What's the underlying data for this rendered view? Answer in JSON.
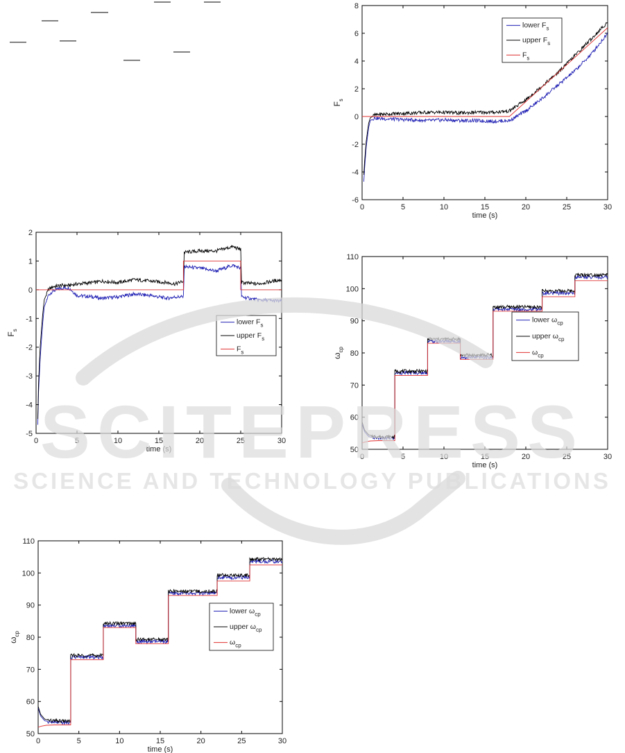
{
  "page": {
    "watermark_text": "SCITEPRESS",
    "watermark_subtitle": "SCIENCE AND TECHNOLOGY PUBLICATIONS"
  },
  "chart_data": [
    {
      "id": "fs-step",
      "type": "line",
      "xlabel": "time (s)",
      "ylabel": "F",
      "ylabel_sub": "s",
      "xlim": [
        0,
        30
      ],
      "ylim": [
        -5,
        2
      ],
      "xticks": [
        0,
        5,
        10,
        15,
        20,
        25,
        30
      ],
      "yticks": [
        -5,
        -4,
        -3,
        -2,
        -1,
        0,
        1,
        2
      ],
      "grid": false,
      "legend_position": "middle-right",
      "series": [
        {
          "name": "lower F",
          "sub": "s",
          "color": "#1f1fb4",
          "x": [
            0.2,
            0.3,
            0.5,
            0.8,
            1.0,
            1.5,
            2.0,
            3.0,
            4.0,
            5.0,
            7.0,
            8.0,
            10.0,
            12.0,
            14.0,
            16.0,
            17.0,
            18.0,
            18.1,
            20.0,
            22.0,
            24.0,
            25.0,
            25.1,
            27.0,
            30.0
          ],
          "y": [
            -4.7,
            -3.6,
            -2.4,
            -1.2,
            -0.6,
            -0.2,
            -0.05,
            0.05,
            0.07,
            -0.2,
            -0.25,
            -0.3,
            -0.25,
            -0.15,
            -0.2,
            -0.3,
            -0.25,
            -0.25,
            0.8,
            0.75,
            0.65,
            0.85,
            0.75,
            -0.25,
            -0.35,
            -0.4
          ]
        },
        {
          "name": "upper F",
          "sub": "s",
          "color": "#000000",
          "x": [
            0.2,
            0.3,
            0.5,
            0.8,
            1.0,
            1.5,
            2.0,
            3.0,
            4.0,
            5.0,
            7.0,
            8.0,
            10.0,
            12.0,
            14.0,
            16.0,
            17.0,
            18.0,
            18.1,
            20.0,
            22.0,
            24.0,
            25.0,
            25.1,
            27.0,
            30.0
          ],
          "y": [
            -4.5,
            -3.3,
            -2.0,
            -0.9,
            -0.35,
            0.0,
            0.1,
            0.15,
            0.15,
            0.2,
            0.25,
            0.3,
            0.25,
            0.35,
            0.3,
            0.25,
            0.2,
            0.3,
            1.3,
            1.35,
            1.35,
            1.5,
            1.4,
            0.25,
            0.2,
            0.35
          ]
        },
        {
          "name": "F",
          "sub": "s",
          "color": "#e03030",
          "x": [
            0.0,
            18.0,
            18.0,
            25.0,
            25.0,
            30.0
          ],
          "y": [
            0,
            0,
            1,
            1,
            0,
            0
          ]
        }
      ]
    },
    {
      "id": "fs-ramp",
      "type": "line",
      "xlabel": "time (s)",
      "ylabel": "F",
      "ylabel_sub": "s",
      "xlim": [
        0,
        30
      ],
      "ylim": [
        -6,
        8
      ],
      "xticks": [
        0,
        5,
        10,
        15,
        20,
        25,
        30
      ],
      "yticks": [
        -6,
        -4,
        -2,
        0,
        2,
        4,
        6,
        8
      ],
      "grid": false,
      "legend_position": "top-right",
      "series": [
        {
          "name": "lower F",
          "sub": "s",
          "color": "#1f1fb4",
          "x": [
            0.2,
            0.3,
            0.5,
            0.8,
            1.0,
            1.5,
            2.0,
            4.0,
            6.0,
            8.0,
            10.0,
            12.0,
            14.0,
            16.0,
            18.0,
            20.0,
            22.0,
            24.0,
            26.0,
            28.0,
            30.0
          ],
          "y": [
            -4.7,
            -3.8,
            -2.2,
            -0.8,
            -0.3,
            -0.1,
            -0.15,
            -0.2,
            -0.25,
            -0.3,
            -0.25,
            -0.3,
            -0.3,
            -0.35,
            -0.3,
            0.4,
            1.3,
            2.3,
            3.3,
            4.5,
            6.0
          ]
        },
        {
          "name": "upper F",
          "sub": "s",
          "color": "#000000",
          "x": [
            0.2,
            0.3,
            0.5,
            0.8,
            1.0,
            1.5,
            2.0,
            4.0,
            6.0,
            8.0,
            10.0,
            12.0,
            14.0,
            16.0,
            18.0,
            20.0,
            22.0,
            24.0,
            26.0,
            28.0,
            30.0
          ],
          "y": [
            -4.2,
            -3.3,
            -1.8,
            -0.5,
            -0.1,
            0.1,
            0.15,
            0.2,
            0.25,
            0.3,
            0.3,
            0.25,
            0.3,
            0.3,
            0.4,
            1.2,
            2.2,
            3.2,
            4.4,
            5.6,
            6.8
          ]
        },
        {
          "name": "F",
          "sub": "s",
          "color": "#e03030",
          "x": [
            0.0,
            18.0,
            30.0
          ],
          "y": [
            0,
            0,
            6.4
          ]
        }
      ]
    },
    {
      "id": "wcp-right",
      "type": "line",
      "xlabel": "time (s)",
      "ylabel": "ω",
      "ylabel_sub": "cp",
      "xlim": [
        0,
        30
      ],
      "ylim": [
        50,
        110
      ],
      "xticks": [
        0,
        5,
        10,
        15,
        20,
        25,
        30
      ],
      "yticks": [
        50,
        60,
        70,
        80,
        90,
        100,
        110
      ],
      "grid": false,
      "legend_position": "middle-right",
      "series": [
        {
          "name": "lower ω",
          "sub": "cp",
          "color": "#1f1fb4",
          "x": [
            0.0,
            0.3,
            0.8,
            1.5,
            2.5,
            4.0,
            4.0,
            8.0,
            8.0,
            12.0,
            12.0,
            16.0,
            16.0,
            22.0,
            22.0,
            26.0,
            26.0,
            30.0
          ],
          "y": [
            58.0,
            55.5,
            54.0,
            53.6,
            53.4,
            53.4,
            73.8,
            73.8,
            83.6,
            83.6,
            78.6,
            78.6,
            93.6,
            93.6,
            98.6,
            98.6,
            103.6,
            103.6
          ]
        },
        {
          "name": "upper ω",
          "sub": "cp",
          "color": "#000000",
          "x": [
            0.0,
            0.3,
            0.8,
            1.5,
            2.5,
            4.0,
            4.0,
            8.0,
            8.0,
            12.0,
            12.0,
            16.0,
            16.0,
            22.0,
            22.0,
            26.0,
            26.0,
            30.0
          ],
          "y": [
            58.5,
            56.0,
            54.5,
            54.0,
            53.9,
            53.9,
            74.3,
            74.3,
            84.3,
            84.3,
            79.3,
            79.3,
            94.3,
            94.3,
            99.3,
            99.3,
            104.3,
            104.3
          ]
        },
        {
          "name": "ω",
          "sub": "cp",
          "color": "#e03030",
          "x": [
            0.0,
            0.4,
            1.0,
            2.0,
            4.0,
            4.0,
            8.0,
            8.0,
            12.0,
            12.0,
            16.0,
            16.0,
            22.0,
            22.0,
            26.0,
            26.0,
            30.0
          ],
          "y": [
            52.0,
            52.3,
            52.6,
            52.7,
            52.7,
            73.0,
            73.0,
            83.0,
            83.0,
            78.0,
            78.0,
            93.0,
            93.0,
            97.5,
            97.5,
            102.5,
            102.5
          ]
        }
      ]
    },
    {
      "id": "wcp-left",
      "type": "line",
      "xlabel": "time (s)",
      "ylabel": "ω",
      "ylabel_sub": "cp",
      "xlim": [
        0,
        30
      ],
      "ylim": [
        50,
        110
      ],
      "xticks": [
        0,
        5,
        10,
        15,
        20,
        25,
        30
      ],
      "yticks": [
        50,
        60,
        70,
        80,
        90,
        100,
        110
      ],
      "grid": false,
      "legend_position": "middle-right",
      "series": [
        {
          "name": "lower ω",
          "sub": "cp",
          "color": "#1f1fb4",
          "x": [
            0.0,
            0.3,
            0.8,
            1.5,
            2.5,
            4.0,
            4.0,
            8.0,
            8.0,
            12.0,
            12.0,
            16.0,
            16.0,
            22.0,
            22.0,
            26.0,
            26.0,
            30.0
          ],
          "y": [
            58.0,
            55.5,
            54.0,
            53.6,
            53.4,
            53.4,
            73.8,
            73.8,
            83.6,
            83.6,
            78.6,
            78.6,
            93.6,
            93.6,
            98.6,
            98.6,
            103.6,
            103.6
          ]
        },
        {
          "name": "upper ω",
          "sub": "cp",
          "color": "#000000",
          "x": [
            0.0,
            0.3,
            0.8,
            1.5,
            2.5,
            4.0,
            4.0,
            8.0,
            8.0,
            12.0,
            12.0,
            16.0,
            16.0,
            22.0,
            22.0,
            26.0,
            26.0,
            30.0
          ],
          "y": [
            58.5,
            56.0,
            54.5,
            54.0,
            53.9,
            53.9,
            74.3,
            74.3,
            84.3,
            84.3,
            79.3,
            79.3,
            94.3,
            94.3,
            99.3,
            99.3,
            104.3,
            104.3
          ]
        },
        {
          "name": "ω",
          "sub": "cp",
          "color": "#e03030",
          "x": [
            0.0,
            0.4,
            1.0,
            2.0,
            4.0,
            4.0,
            8.0,
            8.0,
            12.0,
            12.0,
            16.0,
            16.0,
            22.0,
            22.0,
            26.0,
            26.0,
            30.0
          ],
          "y": [
            52.0,
            52.3,
            52.6,
            52.7,
            52.7,
            73.0,
            73.0,
            83.0,
            83.0,
            78.0,
            78.0,
            93.0,
            93.0,
            97.5,
            97.5,
            102.5,
            102.5
          ]
        }
      ]
    }
  ]
}
